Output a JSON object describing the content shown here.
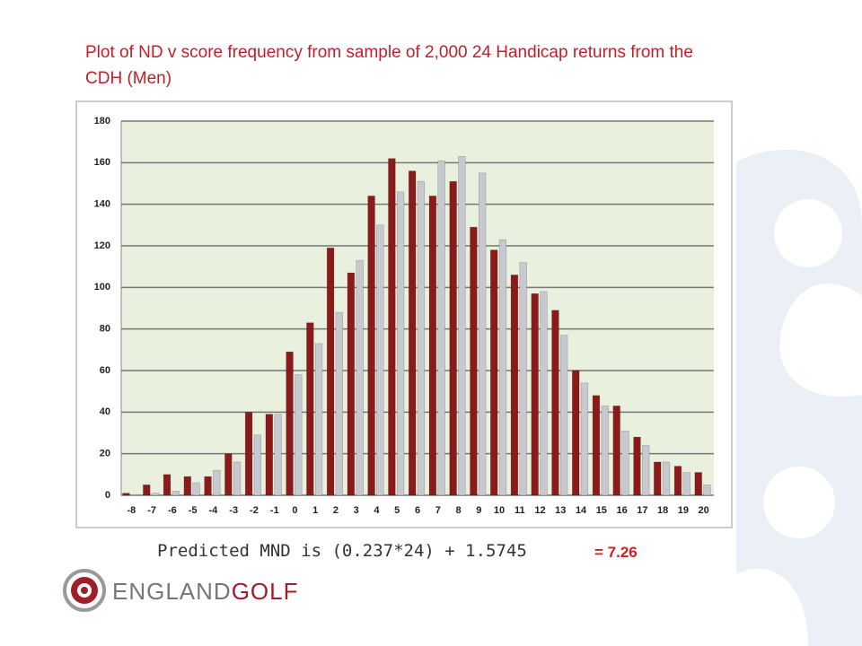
{
  "chart_data": {
    "type": "bar",
    "title": "Plot of ND v score frequency from sample of 2,000 24 Handicap returns from the CDH (Men)",
    "categories": [
      "-8",
      "-7",
      "-6",
      "-5",
      "-4",
      "-3",
      "-2",
      "-1",
      "0",
      "1",
      "2",
      "3",
      "4",
      "5",
      "6",
      "7",
      "8",
      "9",
      "10",
      "11",
      "12",
      "13",
      "14",
      "15",
      "16",
      "17",
      "18",
      "19",
      "20"
    ],
    "series": [
      {
        "color": "#8b1a1a",
        "values": [
          1,
          5,
          10,
          9,
          9,
          20,
          40,
          39,
          69,
          83,
          119,
          107,
          144,
          162,
          156,
          144,
          151,
          129,
          118,
          106,
          97,
          89,
          60,
          48,
          43,
          28,
          16,
          14,
          11
        ]
      },
      {
        "color": "#c8c8d0",
        "values": [
          0,
          1,
          2,
          6,
          12,
          16,
          29,
          39,
          58,
          73,
          88,
          113,
          130,
          146,
          151,
          161,
          163,
          155,
          123,
          112,
          98,
          77,
          54,
          43,
          31,
          24,
          16,
          11,
          5
        ]
      }
    ],
    "ylim": [
      0,
      180
    ],
    "yticks": [
      0,
      20,
      40,
      60,
      80,
      100,
      120,
      140,
      160,
      180
    ],
    "grid": true
  },
  "formula": "Predicted MND is (0.237*24) + 1.5745",
  "result": "= 7.26",
  "logo": {
    "england": "ENGLAND",
    "golf": "GOLF"
  }
}
